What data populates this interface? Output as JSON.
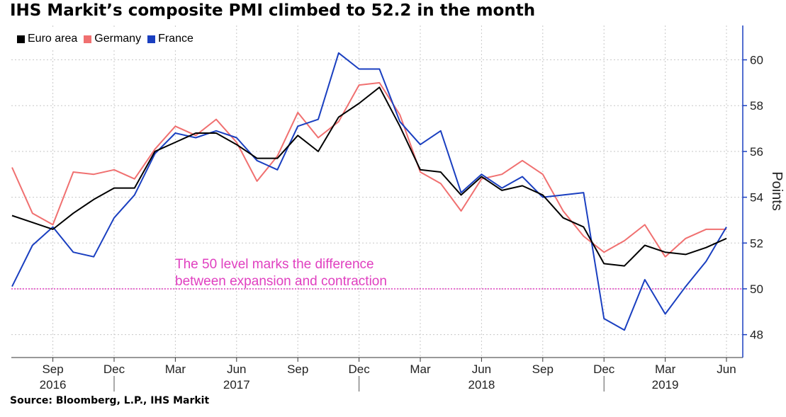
{
  "title": "IHS Markit’s composite PMI climbed to 52.2 in the month",
  "source": "Source: Bloomberg, L.P., IHS Markit",
  "chart_data": {
    "type": "line",
    "x": [
      "2016-07",
      "2016-08",
      "2016-09",
      "2016-10",
      "2016-11",
      "2016-12",
      "2017-01",
      "2017-02",
      "2017-03",
      "2017-04",
      "2017-05",
      "2017-06",
      "2017-07",
      "2017-08",
      "2017-09",
      "2017-10",
      "2017-11",
      "2017-12",
      "2018-01",
      "2018-02",
      "2018-03",
      "2018-04",
      "2018-05",
      "2018-06",
      "2018-07",
      "2018-08",
      "2018-09",
      "2018-10",
      "2018-11",
      "2018-12",
      "2019-01",
      "2019-02",
      "2019-03",
      "2019-04",
      "2019-05",
      "2019-06"
    ],
    "series": [
      {
        "name": "Euro area",
        "color": "#000000",
        "values": [
          53.2,
          52.9,
          52.6,
          53.3,
          53.9,
          54.4,
          54.4,
          56.0,
          56.4,
          56.8,
          56.8,
          56.3,
          55.7,
          55.7,
          56.7,
          56.0,
          57.5,
          58.1,
          58.8,
          57.1,
          55.2,
          55.1,
          54.1,
          54.9,
          54.3,
          54.5,
          54.1,
          53.1,
          52.7,
          51.1,
          51.0,
          51.9,
          51.6,
          51.5,
          51.8,
          52.2
        ]
      },
      {
        "name": "Germany",
        "color": "#f07070",
        "values": [
          55.3,
          53.3,
          52.8,
          55.1,
          55.0,
          55.2,
          54.8,
          56.1,
          57.1,
          56.7,
          57.4,
          56.4,
          54.7,
          55.8,
          57.7,
          56.6,
          57.3,
          58.9,
          59.0,
          57.6,
          55.1,
          54.6,
          53.4,
          54.8,
          55.0,
          55.6,
          55.0,
          53.4,
          52.3,
          51.6,
          52.1,
          52.8,
          51.4,
          52.2,
          52.6,
          52.6
        ]
      },
      {
        "name": "France",
        "color": "#1a3fc0",
        "values": [
          50.1,
          51.9,
          52.7,
          51.6,
          51.4,
          53.1,
          54.1,
          55.9,
          56.8,
          56.6,
          56.9,
          56.6,
          55.6,
          55.2,
          57.1,
          57.4,
          60.3,
          59.6,
          59.6,
          57.3,
          56.3,
          56.9,
          54.2,
          55.0,
          54.4,
          54.9,
          54.0,
          54.1,
          54.2,
          48.7,
          48.2,
          50.4,
          48.9,
          50.1,
          51.2,
          52.7
        ]
      }
    ],
    "x_tick_labels": [
      "Sep",
      "Dec",
      "Mar",
      "Jun",
      "Sep",
      "Dec",
      "Mar",
      "Jun",
      "Sep",
      "Dec",
      "Mar",
      "Jun"
    ],
    "x_tick_months": [
      "2016-09",
      "2016-12",
      "2017-03",
      "2017-06",
      "2017-09",
      "2017-12",
      "2018-03",
      "2018-06",
      "2018-09",
      "2018-12",
      "2019-03",
      "2019-06"
    ],
    "year_labels": [
      "2016",
      "2017",
      "2018",
      "2019"
    ],
    "year_label_months": [
      "2016-09",
      "2017-06",
      "2018-06",
      "2019-03"
    ],
    "year_divider_months": [
      "2016-12",
      "2017-12",
      "2018-12"
    ],
    "y_ticks": [
      48,
      50,
      52,
      54,
      56,
      58,
      60
    ],
    "ylim": [
      47,
      61.5
    ],
    "ylabel": "Points",
    "ylabel_position": "right",
    "reference_line": {
      "value": 50,
      "color": "#e040c0"
    },
    "annotation_lines": [
      "The 50 level marks the  difference",
      "between expansion and contraction"
    ],
    "annotation_color": "#e040c0",
    "grid": true,
    "legend_position": "top-left"
  }
}
